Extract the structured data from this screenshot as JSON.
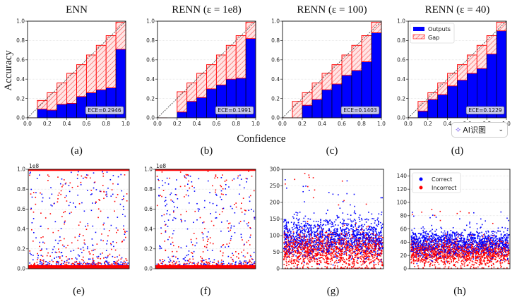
{
  "figure": {
    "shared_ylabel": "Accuracy",
    "shared_xlabel": "Confidence",
    "scale_offset_label": "1e8"
  },
  "overlay": {
    "ai_button_label": "AI识图",
    "ai_icon": "sparkle-scan-icon",
    "chevron_icon": "chevron-down-icon"
  },
  "colors": {
    "outputs": "#0000ff",
    "gap": "#ff0000",
    "correct": "#0000ff",
    "incorrect": "#ff0000"
  },
  "chart_data": [
    {
      "type": "bar",
      "panel": "(a)",
      "title": "ENN",
      "ece_label": "ECE=0.2946",
      "xlim": [
        0,
        1
      ],
      "ylim": [
        0,
        1
      ],
      "xticks": [
        "0.0",
        "0.2",
        "0.4",
        "0.6",
        "0.8",
        "1.0"
      ],
      "yticks": [
        "0.0",
        "0.2",
        "0.4",
        "0.6",
        "0.8",
        "1.0"
      ],
      "bins": [
        0,
        0.1,
        0.2,
        0.3,
        0.4,
        0.5,
        0.6,
        0.7,
        0.8,
        0.9
      ],
      "outputs": [
        null,
        0.09,
        0.08,
        0.14,
        0.15,
        0.22,
        0.26,
        0.29,
        0.31,
        0.71
      ],
      "gap_top": [
        null,
        0.18,
        0.26,
        0.36,
        0.46,
        0.55,
        0.65,
        0.75,
        0.85,
        0.99
      ]
    },
    {
      "type": "bar",
      "panel": "(b)",
      "title": "RENN (ε = 1e8)",
      "ece_label": "ECE=0.1991",
      "xlim": [
        0,
        1
      ],
      "ylim": [
        0,
        1
      ],
      "xticks": [
        "0.0",
        "0.2",
        "0.4",
        "0.6",
        "0.8",
        "1.0"
      ],
      "yticks": [
        "0.0",
        "0.2",
        "0.4",
        "0.6",
        "0.8",
        "1.0"
      ],
      "bins": [
        0,
        0.1,
        0.2,
        0.3,
        0.4,
        0.5,
        0.6,
        0.7,
        0.8,
        0.9
      ],
      "outputs": [
        null,
        null,
        0.06,
        0.17,
        0.21,
        0.3,
        0.34,
        0.4,
        0.41,
        0.82
      ],
      "gap_top": [
        null,
        null,
        0.27,
        0.36,
        0.46,
        0.55,
        0.65,
        0.75,
        0.85,
        0.99
      ]
    },
    {
      "type": "bar",
      "panel": "(c)",
      "title": "RENN (ε = 100)",
      "ece_label": "ECE=0.1403",
      "xlim": [
        0,
        1
      ],
      "ylim": [
        0,
        1
      ],
      "xticks": [
        "0.0",
        "0.2",
        "0.4",
        "0.6",
        "0.8",
        "1.0"
      ],
      "yticks": [
        "0.0",
        "0.2",
        "0.4",
        "0.6",
        "0.8",
        "1.0"
      ],
      "bins": [
        0,
        0.1,
        0.2,
        0.3,
        0.4,
        0.5,
        0.6,
        0.7,
        0.8,
        0.9
      ],
      "outputs": [
        null,
        0.0,
        0.13,
        0.19,
        0.29,
        0.35,
        0.44,
        0.49,
        0.58,
        0.88
      ],
      "gap_top": [
        null,
        0.17,
        0.26,
        0.36,
        0.46,
        0.55,
        0.65,
        0.75,
        0.85,
        0.99
      ]
    },
    {
      "type": "bar",
      "panel": "(d)",
      "title": "RENN (ε = 40)",
      "ece_label": "ECE=0.1229",
      "xlim": [
        0,
        1
      ],
      "ylim": [
        0,
        1
      ],
      "xticks": [
        "0.0",
        "0.2",
        "0.4",
        "0.6",
        "0.8",
        "1.0"
      ],
      "yticks": [
        "0.0",
        "0.2",
        "0.4",
        "0.6",
        "0.8",
        "1.0"
      ],
      "bins": [
        0,
        0.1,
        0.2,
        0.3,
        0.4,
        0.5,
        0.6,
        0.7,
        0.8,
        0.9
      ],
      "outputs": [
        null,
        0.07,
        0.19,
        0.24,
        0.33,
        0.39,
        0.46,
        0.51,
        0.66,
        0.9
      ],
      "gap_top": [
        null,
        0.17,
        0.26,
        0.36,
        0.46,
        0.55,
        0.65,
        0.75,
        0.85,
        0.99
      ],
      "legend": [
        "Outputs",
        "Gap"
      ],
      "legend_position": "top-left"
    },
    {
      "type": "scatter",
      "panel": "(e)",
      "ylim": [
        0,
        1.0
      ],
      "y_scale_label": "1e8",
      "yticks": [
        "0.0",
        "0.2",
        "0.4",
        "0.6",
        "0.8",
        "1.0"
      ],
      "series": [
        {
          "color": "#0000ff"
        },
        {
          "color": "#ff0000"
        }
      ],
      "grid": true
    },
    {
      "type": "scatter",
      "panel": "(f)",
      "ylim": [
        0,
        1.0
      ],
      "y_scale_label": "1e8",
      "yticks": [
        "0.0",
        "0.2",
        "0.4",
        "0.6",
        "0.8",
        "1.0"
      ],
      "series": [
        {
          "color": "#0000ff"
        },
        {
          "color": "#ff0000"
        }
      ],
      "grid": true
    },
    {
      "type": "scatter",
      "panel": "(g)",
      "ylim": [
        0,
        300
      ],
      "yticks": [
        "0",
        "50",
        "100",
        "150",
        "200",
        "250",
        "300"
      ],
      "series": [
        {
          "color": "#0000ff"
        },
        {
          "color": "#ff0000"
        }
      ],
      "grid": true
    },
    {
      "type": "scatter",
      "panel": "(h)",
      "ylim": [
        0,
        150
      ],
      "yticks": [
        "0",
        "20",
        "40",
        "60",
        "80",
        "100",
        "120",
        "140"
      ],
      "series": [
        {
          "name": "Correct",
          "color": "#0000ff"
        },
        {
          "name": "Incorrect",
          "color": "#ff0000"
        }
      ],
      "legend_position": "top-left",
      "grid": true
    }
  ]
}
